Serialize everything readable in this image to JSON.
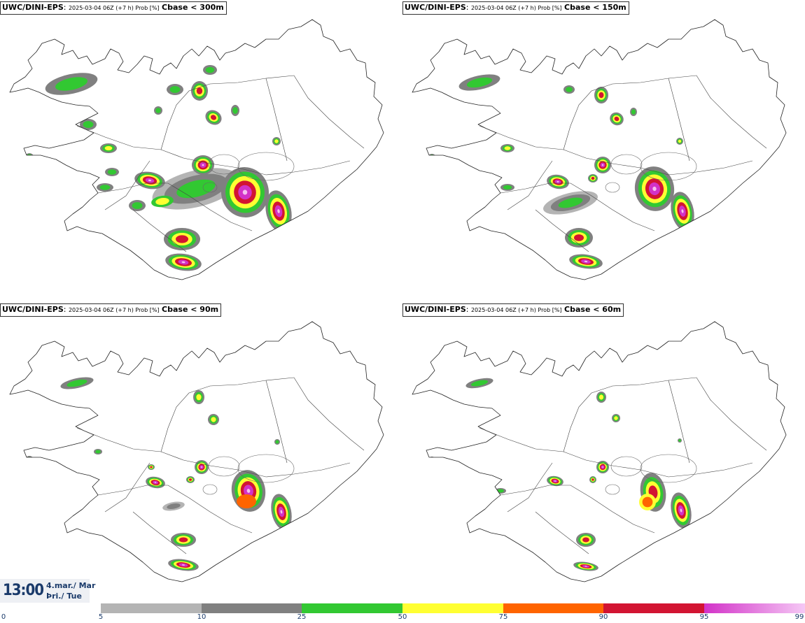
{
  "panels": [
    {
      "model": "UWC/DINI-EPS",
      "run": "2025-03-04 06Z (+7 h) Prob [%]",
      "field": "Cbase < 300m",
      "level": 4
    },
    {
      "model": "UWC/DINI-EPS",
      "run": "2025-03-04 06Z (+7 h) Prob [%]",
      "field": "Cbase < 150m",
      "level": 3
    },
    {
      "model": "UWC/DINI-EPS",
      "run": "2025-03-04 06Z (+7 h) Prob [%]",
      "field": "Cbase < 90m",
      "level": 2
    },
    {
      "model": "UWC/DINI-EPS",
      "run": "2025-03-04 06Z (+7 h) Prob [%]",
      "field": "Cbase < 60m",
      "level": 1
    }
  ],
  "valid_time": {
    "clock": "13:00",
    "date_line1": "4.mar./ Mar",
    "date_line2": "Þri./ Tue"
  },
  "legend": {
    "ticks": [
      "0",
      "5",
      "10",
      "25",
      "50",
      "75",
      "90",
      "95",
      "99"
    ],
    "bins": [
      {
        "from": 5,
        "to": 10,
        "color": "#b4b4b4"
      },
      {
        "from": 10,
        "to": 25,
        "color": "#808080"
      },
      {
        "from": 25,
        "to": 50,
        "color": "#32c832"
      },
      {
        "from": 50,
        "to": 75,
        "color": "#ffff32"
      },
      {
        "from": 75,
        "to": 90,
        "color": "#ff6400"
      },
      {
        "from": 90,
        "to": 95,
        "color": "#d21432"
      },
      {
        "from": 95,
        "to": 99,
        "color": "#d232c8",
        "to_color": "#f5c8f5"
      }
    ]
  }
}
